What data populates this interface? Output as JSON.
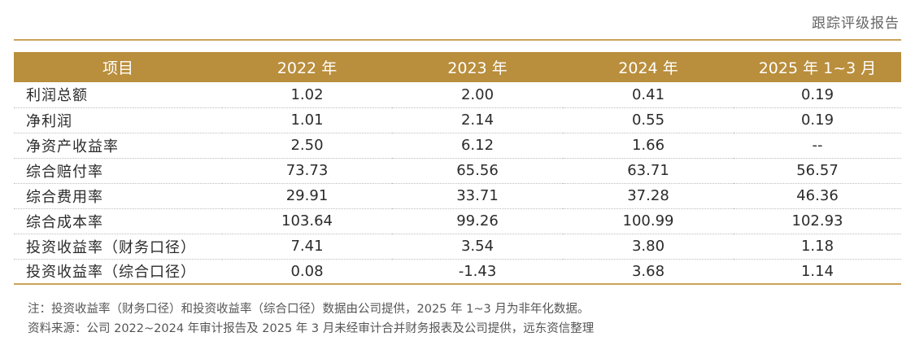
{
  "header": {
    "report_label": "跟踪评级报告"
  },
  "table": {
    "columns": [
      "项目",
      "2022 年",
      "2023 年",
      "2024 年",
      "2025 年 1~3 月"
    ],
    "rows": [
      [
        "利润总额",
        "1.02",
        "2.00",
        "0.41",
        "0.19"
      ],
      [
        "净利润",
        "1.01",
        "2.14",
        "0.55",
        "0.19"
      ],
      [
        "净资产收益率",
        "2.50",
        "6.12",
        "1.66",
        "--"
      ],
      [
        "综合赔付率",
        "73.73",
        "65.56",
        "63.71",
        "56.57"
      ],
      [
        "综合费用率",
        "29.91",
        "33.71",
        "37.28",
        "46.36"
      ],
      [
        "综合成本率",
        "103.64",
        "99.26",
        "100.99",
        "102.93"
      ],
      [
        "投资收益率（财务口径）",
        "7.41",
        "3.54",
        "3.80",
        "1.18"
      ],
      [
        "投资收益率（综合口径）",
        "0.08",
        "-1.43",
        "3.68",
        "1.14"
      ]
    ]
  },
  "notes": {
    "note": "注：投资收益率（财务口径）和投资收益率（综合口径）数据由公司提供，2025 年 1~3 月为非年化数据。",
    "source": "资料来源：公司 2022~2024 年审计报告及 2025 年 3 月未经审计合并财务报表及公司提供，远东资信整理"
  },
  "colors": {
    "header_bg": "#b98e3c",
    "rule": "#c9a35a"
  }
}
